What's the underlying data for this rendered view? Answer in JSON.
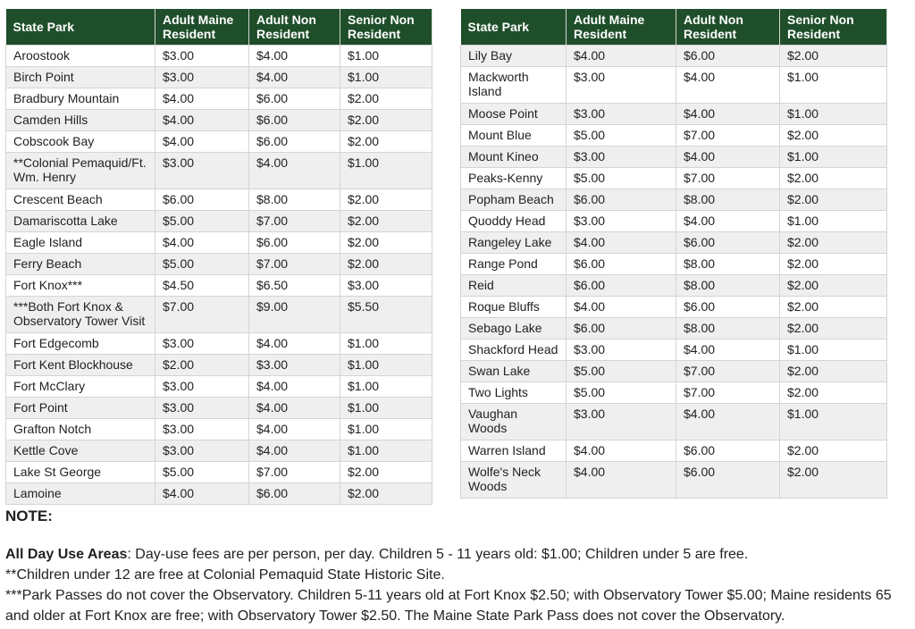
{
  "tables": [
    {
      "header": [
        "State Park",
        "Adult Maine Resident",
        "Adult Non Resident",
        "Senior Non Resident"
      ],
      "rows": [
        [
          "Aroostook",
          "$3.00",
          "$4.00",
          "$1.00"
        ],
        [
          "Birch Point",
          "$3.00",
          "$4.00",
          "$1.00"
        ],
        [
          "Bradbury Mountain",
          "$4.00",
          "$6.00",
          "$2.00"
        ],
        [
          "Camden Hills",
          "$4.00",
          "$6.00",
          "$2.00"
        ],
        [
          "Cobscook Bay",
          "$4.00",
          "$6.00",
          "$2.00"
        ],
        [
          "**Colonial Pemaquid/Ft. Wm. Henry",
          "$3.00",
          "$4.00",
          "$1.00"
        ],
        [
          "Crescent Beach",
          "$6.00",
          "$8.00",
          "$2.00"
        ],
        [
          "Damariscotta Lake",
          "$5.00",
          "$7.00",
          "$2.00"
        ],
        [
          "Eagle Island",
          "$4.00",
          "$6.00",
          "$2.00"
        ],
        [
          "Ferry Beach",
          "$5.00",
          "$7.00",
          "$2.00"
        ],
        [
          "Fort Knox***",
          "$4.50",
          "$6.50",
          "$3.00"
        ],
        [
          "***Both Fort Knox & Observatory Tower Visit",
          "$7.00",
          "$9.00",
          "$5.50"
        ],
        [
          "Fort Edgecomb",
          "$3.00",
          "$4.00",
          "$1.00"
        ],
        [
          "Fort Kent Blockhouse",
          "$2.00",
          "$3.00",
          "$1.00"
        ],
        [
          "Fort McClary",
          "$3.00",
          "$4.00",
          "$1.00"
        ],
        [
          "Fort Point",
          "$3.00",
          "$4.00",
          "$1.00"
        ],
        [
          "Grafton Notch",
          "$3.00",
          "$4.00",
          "$1.00"
        ],
        [
          "Kettle Cove",
          "$3.00",
          "$4.00",
          "$1.00"
        ],
        [
          "Lake St George",
          "$5.00",
          "$7.00",
          "$2.00"
        ],
        [
          "Lamoine",
          "$4.00",
          "$6.00",
          "$2.00"
        ]
      ]
    },
    {
      "header": [
        "State Park",
        "Adult Maine Resident",
        "Adult Non Resident",
        "Senior Non Resident"
      ],
      "rows": [
        [
          "Lily Bay",
          "$4.00",
          "$6.00",
          "$2.00"
        ],
        [
          "Mackworth Island",
          "$3.00",
          "$4.00",
          "$1.00"
        ],
        [
          "Moose Point",
          "$3.00",
          "$4.00",
          "$1.00"
        ],
        [
          "Mount Blue",
          "$5.00",
          "$7.00",
          "$2.00"
        ],
        [
          "Mount Kineo",
          "$3.00",
          "$4.00",
          "$1.00"
        ],
        [
          "Peaks-Kenny",
          "$5.00",
          "$7.00",
          "$2.00"
        ],
        [
          "Popham Beach",
          "$6.00",
          "$8.00",
          "$2.00"
        ],
        [
          "Quoddy Head",
          "$3.00",
          "$4.00",
          "$1.00"
        ],
        [
          "Rangeley Lake",
          "$4.00",
          "$6.00",
          "$2.00"
        ],
        [
          "Range Pond",
          "$6.00",
          "$8.00",
          "$2.00"
        ],
        [
          "Reid",
          "$6.00",
          "$8.00",
          "$2.00"
        ],
        [
          "Roque Bluffs",
          "$4.00",
          "$6.00",
          "$2.00"
        ],
        [
          "Sebago Lake",
          "$6.00",
          "$8.00",
          "$2.00"
        ],
        [
          "Shackford Head",
          "$3.00",
          "$4.00",
          "$1.00"
        ],
        [
          "Swan Lake",
          "$5.00",
          "$7.00",
          "$2.00"
        ],
        [
          "Two Lights",
          "$5.00",
          "$7.00",
          "$2.00"
        ],
        [
          "Vaughan Woods",
          "$3.00",
          "$4.00",
          "$1.00"
        ],
        [
          "Warren Island",
          "$4.00",
          "$6.00",
          "$2.00"
        ],
        [
          "Wolfe's Neck Woods",
          "$4.00",
          "$6.00",
          "$2.00"
        ]
      ]
    }
  ],
  "note": {
    "title": "NOTE:",
    "lines": [
      {
        "label": "All Day Use Areas",
        "text": ": Day-use fees are per person, per day. Children 5 - 11 years old: $1.00; Children under 5 are free."
      },
      {
        "text": "**Children under 12 are free at Colonial Pemaquid State Historic Site."
      },
      {
        "text": "***Park Passes do not cover the Observatory. Children 5-11 years old at Fort Knox $2.50; with Observatory Tower $5.00; Maine residents 65 and older at Fort Knox are free; with Observatory Tower $2.50. The Maine State Park Pass does not cover the Observatory."
      }
    ]
  }
}
